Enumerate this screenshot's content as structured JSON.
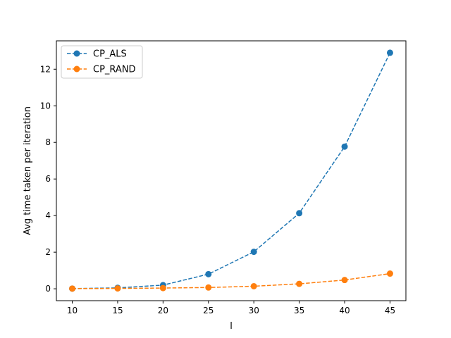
{
  "chart_data": {
    "type": "line",
    "title": "",
    "xlabel": "l",
    "ylabel": "Avg time taken per iteration",
    "x": [
      10,
      15,
      20,
      25,
      30,
      35,
      40,
      45
    ],
    "xlim": [
      8.25,
      46.75
    ],
    "ylim": [
      -0.65,
      13.55
    ],
    "xticks": [
      10,
      15,
      20,
      25,
      30,
      35,
      40,
      45
    ],
    "yticks": [
      0,
      2,
      4,
      6,
      8,
      10,
      12
    ],
    "grid": false,
    "legend_position": "top-left",
    "series": [
      {
        "name": "CP_ALS",
        "color": "#1f77b4",
        "linestyle": "dashed",
        "marker": "circle",
        "values": [
          0.01,
          0.05,
          0.2,
          0.8,
          2.02,
          4.13,
          7.77,
          12.9
        ]
      },
      {
        "name": "CP_RAND",
        "color": "#ff7f0e",
        "linestyle": "dashed",
        "marker": "circle",
        "values": [
          0.01,
          0.02,
          0.04,
          0.07,
          0.14,
          0.27,
          0.48,
          0.83
        ]
      }
    ]
  }
}
